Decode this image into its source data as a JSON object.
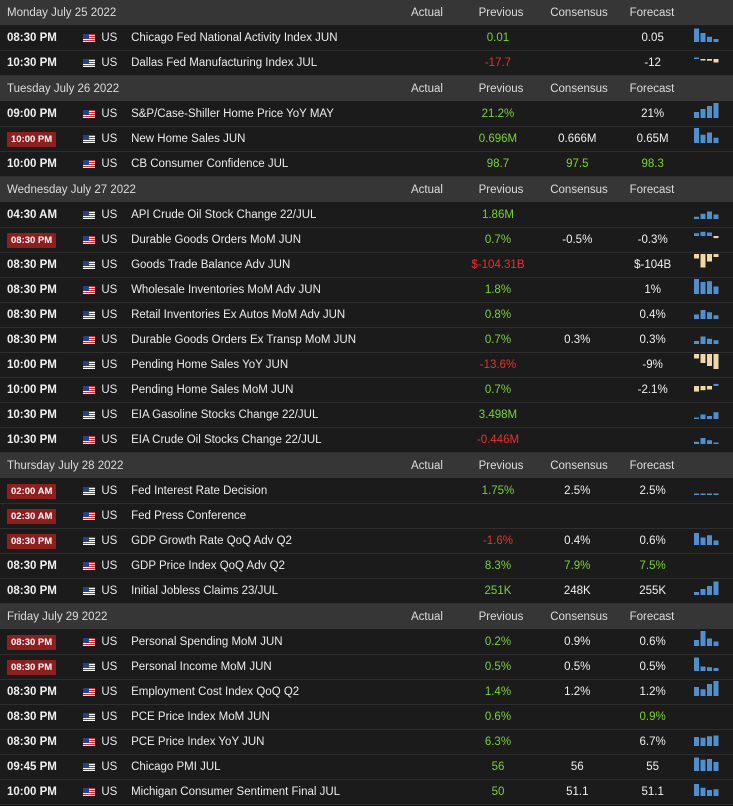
{
  "columns": {
    "actual": "Actual",
    "previous": "Previous",
    "consensus": "Consensus",
    "forecast": "Forecast"
  },
  "colors": {
    "up": "#7cd12f",
    "down": "#e8312f",
    "neutral": "#f0f0f0",
    "bar_blue": "#4d8fcf",
    "bar_tan": "#f0d7a5",
    "badge": "#8e1f1f"
  },
  "days": [
    {
      "date": "Monday July 25 2022",
      "events": [
        {
          "time": "08:30 PM",
          "hl": false,
          "country": "US",
          "name": "Chicago Fed National Activity Index JUN",
          "actual": "",
          "previous": "0.01",
          "pc": "up",
          "consensus": "",
          "cc": "neu",
          "forecast": "0.05",
          "fc": "neu",
          "spark": [
            0.9,
            0.6,
            0.35,
            0.2
          ],
          "tone": "blue"
        },
        {
          "time": "10:30 PM",
          "hl": false,
          "country": "US",
          "name": "Dallas Fed Manufacturing Index JUL",
          "actual": "",
          "previous": "-17.7",
          "pc": "dn",
          "consensus": "",
          "cc": "neu",
          "forecast": "-12",
          "fc": "neu",
          "spark": [
            0.1,
            -0.1,
            -0.25,
            -0.5
          ],
          "tone": "mix"
        }
      ]
    },
    {
      "date": "Tuesday July 26 2022",
      "events": [
        {
          "time": "09:00 PM",
          "hl": false,
          "country": "US",
          "name": "S&P/Case-Shiller Home Price YoY MAY",
          "actual": "",
          "previous": "21.2%",
          "pc": "up",
          "consensus": "",
          "cc": "neu",
          "forecast": "21%",
          "fc": "neu",
          "spark": [
            0.4,
            0.6,
            0.8,
            1.0
          ],
          "tone": "blue"
        },
        {
          "time": "10:00 PM",
          "hl": true,
          "country": "US",
          "name": "New Home Sales JUN",
          "actual": "",
          "previous": "0.696M",
          "pc": "up",
          "consensus": "0.666M",
          "cc": "neu",
          "forecast": "0.65M",
          "fc": "neu",
          "spark": [
            1.0,
            0.55,
            0.7,
            0.35
          ],
          "tone": "blue"
        },
        {
          "time": "10:00 PM",
          "hl": false,
          "country": "US",
          "name": "CB Consumer Confidence JUL",
          "actual": "",
          "previous": "98.7",
          "pc": "up",
          "consensus": "97.5",
          "cc": "up",
          "forecast": "98.3",
          "fc": "up",
          "spark": [],
          "tone": "blue"
        }
      ]
    },
    {
      "date": "Wednesday July 27 2022",
      "events": [
        {
          "time": "04:30 AM",
          "hl": false,
          "country": "US",
          "name": "API Crude Oil Stock Change 22/JUL",
          "actual": "",
          "previous": "1.86M",
          "pc": "up",
          "consensus": "",
          "cc": "neu",
          "forecast": "",
          "fc": "neu",
          "spark": [
            0.15,
            0.35,
            0.5,
            0.3
          ],
          "tone": "blue"
        },
        {
          "time": "08:30 PM",
          "hl": true,
          "country": "US",
          "name": "Durable Goods Orders MoM JUN",
          "actual": "",
          "previous": "0.7%",
          "pc": "up",
          "consensus": "-0.5%",
          "cc": "neu",
          "forecast": "-0.3%",
          "fc": "neu",
          "spark": [
            0.4,
            0.6,
            0.5,
            -0.3
          ],
          "tone": "mix"
        },
        {
          "time": "08:30 PM",
          "hl": false,
          "country": "US",
          "name": "Goods Trade Balance Adv JUN",
          "actual": "",
          "previous": "$-104.31B",
          "pc": "dn",
          "consensus": "",
          "cc": "neu",
          "forecast": "$-104B",
          "fc": "neu",
          "spark": [
            -0.3,
            -0.9,
            -0.5,
            -0.2
          ],
          "tone": "tan"
        },
        {
          "time": "08:30 PM",
          "hl": false,
          "country": "US",
          "name": "Wholesale Inventories MoM Adv JUN",
          "actual": "",
          "previous": "1.8%",
          "pc": "up",
          "consensus": "",
          "cc": "neu",
          "forecast": "1%",
          "fc": "neu",
          "spark": [
            1.0,
            0.8,
            0.85,
            0.5
          ],
          "tone": "blue"
        },
        {
          "time": "08:30 PM",
          "hl": false,
          "country": "US",
          "name": "Retail Inventories Ex Autos MoM Adv JUN",
          "actual": "",
          "previous": "0.8%",
          "pc": "up",
          "consensus": "",
          "cc": "neu",
          "forecast": "0.4%",
          "fc": "neu",
          "spark": [
            0.3,
            0.6,
            0.45,
            0.25
          ],
          "tone": "blue"
        },
        {
          "time": "08:30 PM",
          "hl": false,
          "country": "US",
          "name": "Durable Goods Orders Ex Transp MoM JUN",
          "actual": "",
          "previous": "0.7%",
          "pc": "up",
          "consensus": "0.3%",
          "cc": "neu",
          "forecast": "0.3%",
          "fc": "neu",
          "spark": [
            0.2,
            0.5,
            0.35,
            0.25
          ],
          "tone": "blue"
        },
        {
          "time": "10:00 PM",
          "hl": false,
          "country": "US",
          "name": "Pending Home Sales YoY JUN",
          "actual": "",
          "previous": "-13.6%",
          "pc": "dn",
          "consensus": "",
          "cc": "neu",
          "forecast": "-9%",
          "fc": "neu",
          "spark": [
            -0.3,
            -0.6,
            -0.8,
            -1.0
          ],
          "tone": "tan"
        },
        {
          "time": "10:00 PM",
          "hl": false,
          "country": "US",
          "name": "Pending Home Sales MoM JUN",
          "actual": "",
          "previous": "0.7%",
          "pc": "up",
          "consensus": "",
          "cc": "neu",
          "forecast": "-2.1%",
          "fc": "neu",
          "spark": [
            -0.8,
            -0.6,
            -0.5,
            0.3
          ],
          "tone": "mix"
        },
        {
          "time": "10:30 PM",
          "hl": false,
          "country": "US",
          "name": "EIA Gasoline Stocks Change 22/JUL",
          "actual": "",
          "previous": "3.498M",
          "pc": "up",
          "consensus": "",
          "cc": "neu",
          "forecast": "",
          "fc": "neu",
          "spark": [
            0.1,
            0.3,
            0.2,
            0.45
          ],
          "tone": "blue"
        },
        {
          "time": "10:30 PM",
          "hl": false,
          "country": "US",
          "name": "EIA Crude Oil Stocks Change 22/JUL",
          "actual": "",
          "previous": "-0.446M",
          "pc": "dn",
          "consensus": "",
          "cc": "neu",
          "forecast": "",
          "fc": "neu",
          "spark": [
            0.15,
            0.4,
            0.25,
            0.1
          ],
          "tone": "blue"
        }
      ]
    },
    {
      "date": "Thursday July 28 2022",
      "events": [
        {
          "time": "02:00 AM",
          "hl": true,
          "country": "US",
          "name": "Fed Interest Rate Decision",
          "actual": "",
          "previous": "1.75%",
          "pc": "up",
          "consensus": "2.5%",
          "cc": "neu",
          "forecast": "2.5%",
          "fc": "neu",
          "spark": [
            0.05,
            0.05,
            0.05,
            0.05
          ],
          "tone": "blue"
        },
        {
          "time": "02:30 AM",
          "hl": true,
          "country": "US",
          "name": "Fed Press Conference",
          "actual": "",
          "previous": "",
          "pc": "neu",
          "consensus": "",
          "cc": "neu",
          "forecast": "",
          "fc": "neu",
          "spark": [],
          "tone": "blue"
        },
        {
          "time": "08:30 PM",
          "hl": true,
          "country": "US",
          "name": "GDP Growth Rate QoQ Adv Q2",
          "actual": "",
          "previous": "-1.6%",
          "pc": "dn",
          "consensus": "0.4%",
          "cc": "neu",
          "forecast": "0.6%",
          "fc": "neu",
          "spark": [
            0.8,
            0.5,
            0.65,
            0.3
          ],
          "tone": "blue"
        },
        {
          "time": "08:30 PM",
          "hl": false,
          "country": "US",
          "name": "GDP Price Index QoQ Adv Q2",
          "actual": "",
          "previous": "8.3%",
          "pc": "up",
          "consensus": "7.9%",
          "cc": "up",
          "forecast": "7.5%",
          "fc": "up",
          "spark": [],
          "tone": "blue"
        },
        {
          "time": "08:30 PM",
          "hl": false,
          "country": "US",
          "name": "Initial Jobless Claims 23/JUL",
          "actual": "",
          "previous": "251K",
          "pc": "up",
          "consensus": "248K",
          "cc": "neu",
          "forecast": "255K",
          "fc": "neu",
          "spark": [
            0.2,
            0.4,
            0.6,
            0.9
          ],
          "tone": "blue"
        }
      ]
    },
    {
      "date": "Friday July 29 2022",
      "events": [
        {
          "time": "08:30 PM",
          "hl": true,
          "country": "US",
          "name": "Personal Spending MoM JUN",
          "actual": "",
          "previous": "0.2%",
          "pc": "up",
          "consensus": "0.9%",
          "cc": "neu",
          "forecast": "0.6%",
          "fc": "neu",
          "spark": [
            0.4,
            1.0,
            0.5,
            0.3
          ],
          "tone": "blue"
        },
        {
          "time": "08:30 PM",
          "hl": true,
          "country": "US",
          "name": "Personal Income MoM JUN",
          "actual": "",
          "previous": "0.5%",
          "pc": "up",
          "consensus": "0.5%",
          "cc": "neu",
          "forecast": "0.5%",
          "fc": "neu",
          "spark": [
            0.9,
            0.3,
            0.25,
            0.2
          ],
          "tone": "blue"
        },
        {
          "time": "08:30 PM",
          "hl": false,
          "country": "US",
          "name": "Employment Cost Index QoQ Q2",
          "actual": "",
          "previous": "1.4%",
          "pc": "up",
          "consensus": "1.2%",
          "cc": "neu",
          "forecast": "1.2%",
          "fc": "neu",
          "spark": [
            0.6,
            0.45,
            0.8,
            1.0
          ],
          "tone": "blue"
        },
        {
          "time": "08:30 PM",
          "hl": false,
          "country": "US",
          "name": "PCE Price Index MoM JUN",
          "actual": "",
          "previous": "0.6%",
          "pc": "up",
          "consensus": "",
          "cc": "neu",
          "forecast": "0.9%",
          "fc": "up",
          "spark": [],
          "tone": "blue"
        },
        {
          "time": "08:30 PM",
          "hl": false,
          "country": "US",
          "name": "PCE Price Index YoY JUN",
          "actual": "",
          "previous": "6.3%",
          "pc": "up",
          "consensus": "",
          "cc": "neu",
          "forecast": "6.7%",
          "fc": "neu",
          "spark": [
            0.6,
            0.55,
            0.65,
            0.7
          ],
          "tone": "blue"
        },
        {
          "time": "09:45 PM",
          "hl": false,
          "country": "US",
          "name": "Chicago PMI JUL",
          "actual": "",
          "previous": "56",
          "pc": "up",
          "consensus": "56",
          "cc": "neu",
          "forecast": "55",
          "fc": "neu",
          "spark": [
            0.9,
            0.75,
            0.8,
            0.6
          ],
          "tone": "blue"
        },
        {
          "time": "10:00 PM",
          "hl": false,
          "country": "US",
          "name": "Michigan Consumer Sentiment Final JUL",
          "actual": "",
          "previous": "50",
          "pc": "up",
          "consensus": "51.1",
          "cc": "neu",
          "forecast": "51.1",
          "fc": "neu",
          "spark": [
            0.8,
            0.55,
            0.4,
            0.45
          ],
          "tone": "blue"
        }
      ]
    }
  ]
}
